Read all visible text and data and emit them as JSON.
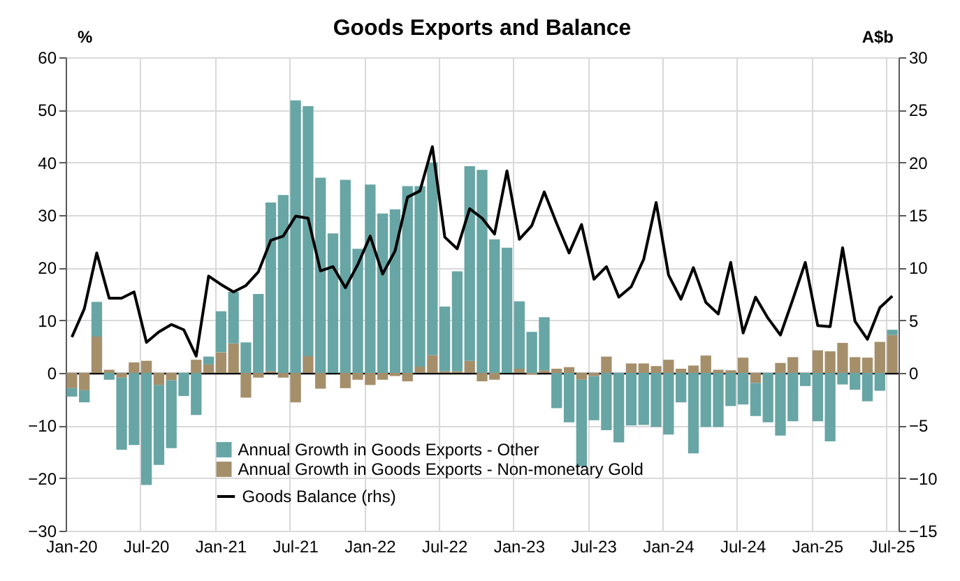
{
  "chart_data": {
    "type": "bar",
    "title": "Goods Exports and Balance",
    "ylabel": "%",
    "y2label": "A$b",
    "categories": [
      "Jan-20",
      null,
      null,
      null,
      null,
      null,
      "Jul-20",
      null,
      null,
      null,
      null,
      null,
      "Jan-21",
      null,
      null,
      null,
      null,
      null,
      "Jul-21",
      null,
      null,
      null,
      null,
      null,
      "Jan-22",
      null,
      null,
      null,
      null,
      null,
      "Jul-22",
      null,
      null,
      null,
      null,
      null,
      "Jan-23",
      null,
      null,
      null,
      null,
      null,
      "Jul-23",
      null,
      null,
      null,
      null,
      null,
      "Jan-24",
      null,
      null,
      null,
      null,
      null,
      "Jul-24",
      null,
      null,
      null,
      null,
      null,
      "Jan-25",
      null,
      null,
      null,
      null,
      null,
      "Jul-25"
    ],
    "series": [
      {
        "name": "Annual Growth in Goods Exports - Non-monetary Gold",
        "color": "#a58f6b",
        "values": [
          -2.9,
          -3.3,
          6.9,
          0.6,
          -0.9,
          2.0,
          2.3,
          -2.3,
          -1.4,
          0,
          2.5,
          1.6,
          3.9,
          5.6,
          -4.7,
          -0.9,
          0.3,
          -0.9,
          -5.6,
          3.2,
          -3.0,
          0,
          -2.9,
          -1.3,
          -2.3,
          -1.3,
          -0.6,
          -1.6,
          1.2,
          3.4,
          0.3,
          0.3,
          2.3,
          -1.6,
          -1.3,
          0,
          0.8,
          -0.3,
          0.5,
          0.8,
          1.1,
          -1.3,
          -0.6,
          3.1,
          0,
          1.8,
          1.8,
          1.3,
          2.5,
          0.8,
          1.4,
          3.3,
          0.6,
          0.5,
          2.9,
          -1.9,
          0,
          1.9,
          3.0,
          0,
          4.3,
          4.1,
          5.7,
          3.0,
          2.9,
          5.9,
          7.2
        ]
      },
      {
        "name": "Annual Growth in Goods Exports - Other",
        "color": "#68a5a5",
        "values": [
          -1.6,
          -2.3,
          6.6,
          -1.3,
          -13.7,
          -13.7,
          -21.3,
          -15.2,
          -12.9,
          -4.4,
          -8.0,
          1.5,
          7.8,
          9.8,
          5.8,
          15.0,
          32.1,
          33.8,
          51.8,
          47.5,
          37.1,
          26.5,
          36.7,
          23.6,
          35.8,
          30.3,
          31.1,
          35.5,
          34.3,
          36.6,
          12.3,
          19.0,
          37.0,
          38.6,
          25.4,
          23.8,
          12.8,
          7.8,
          10.1,
          -6.7,
          -9.4,
          -16.5,
          -8.4,
          -10.9,
          -13.2,
          -10.0,
          -9.9,
          -10.3,
          -11.7,
          -5.6,
          -15.3,
          -10.3,
          -10.3,
          -6.3,
          -6.0,
          -6.3,
          -9.4,
          -11.9,
          -9.2,
          -2.5,
          -9.2,
          -13.0,
          -2.2,
          -3.2,
          -5.4,
          -3.4,
          1.0
        ]
      },
      {
        "name": "Goods Balance (rhs)",
        "type": "line",
        "axis": "y2",
        "color": "#000000",
        "values": [
          3.4,
          6.1,
          11.4,
          7.1,
          7.1,
          7.7,
          2.9,
          3.9,
          4.6,
          4.1,
          1.6,
          9.2,
          8.4,
          7.7,
          8.3,
          9.6,
          12.6,
          13.0,
          14.9,
          14.7,
          9.7,
          10.1,
          8.1,
          10.3,
          13.0,
          9.4,
          11.6,
          16.7,
          17.3,
          21.5,
          12.9,
          11.8,
          15.6,
          14.7,
          13.2,
          19.2,
          12.7,
          14.0,
          17.2,
          14.2,
          11.4,
          14.1,
          8.9,
          10.1,
          7.2,
          8.2,
          10.8,
          16.2,
          9.3,
          7.0,
          10.0,
          6.7,
          5.6,
          10.5,
          3.8,
          7.2,
          5.2,
          3.6,
          7.0,
          10.5,
          4.5,
          4.4,
          11.9,
          4.9,
          3.2,
          6.2,
          7.3
        ]
      }
    ],
    "stacked": true,
    "ylim": [
      -30,
      60
    ],
    "yticks": [
      -30,
      -20,
      -10,
      0,
      10,
      20,
      30,
      40,
      50,
      60
    ],
    "y2lim": [
      -15,
      30
    ],
    "y2ticks": [
      -15,
      -10,
      -5,
      0,
      5,
      10,
      15,
      20,
      25,
      30
    ],
    "grid": true,
    "legend": "bottom"
  }
}
